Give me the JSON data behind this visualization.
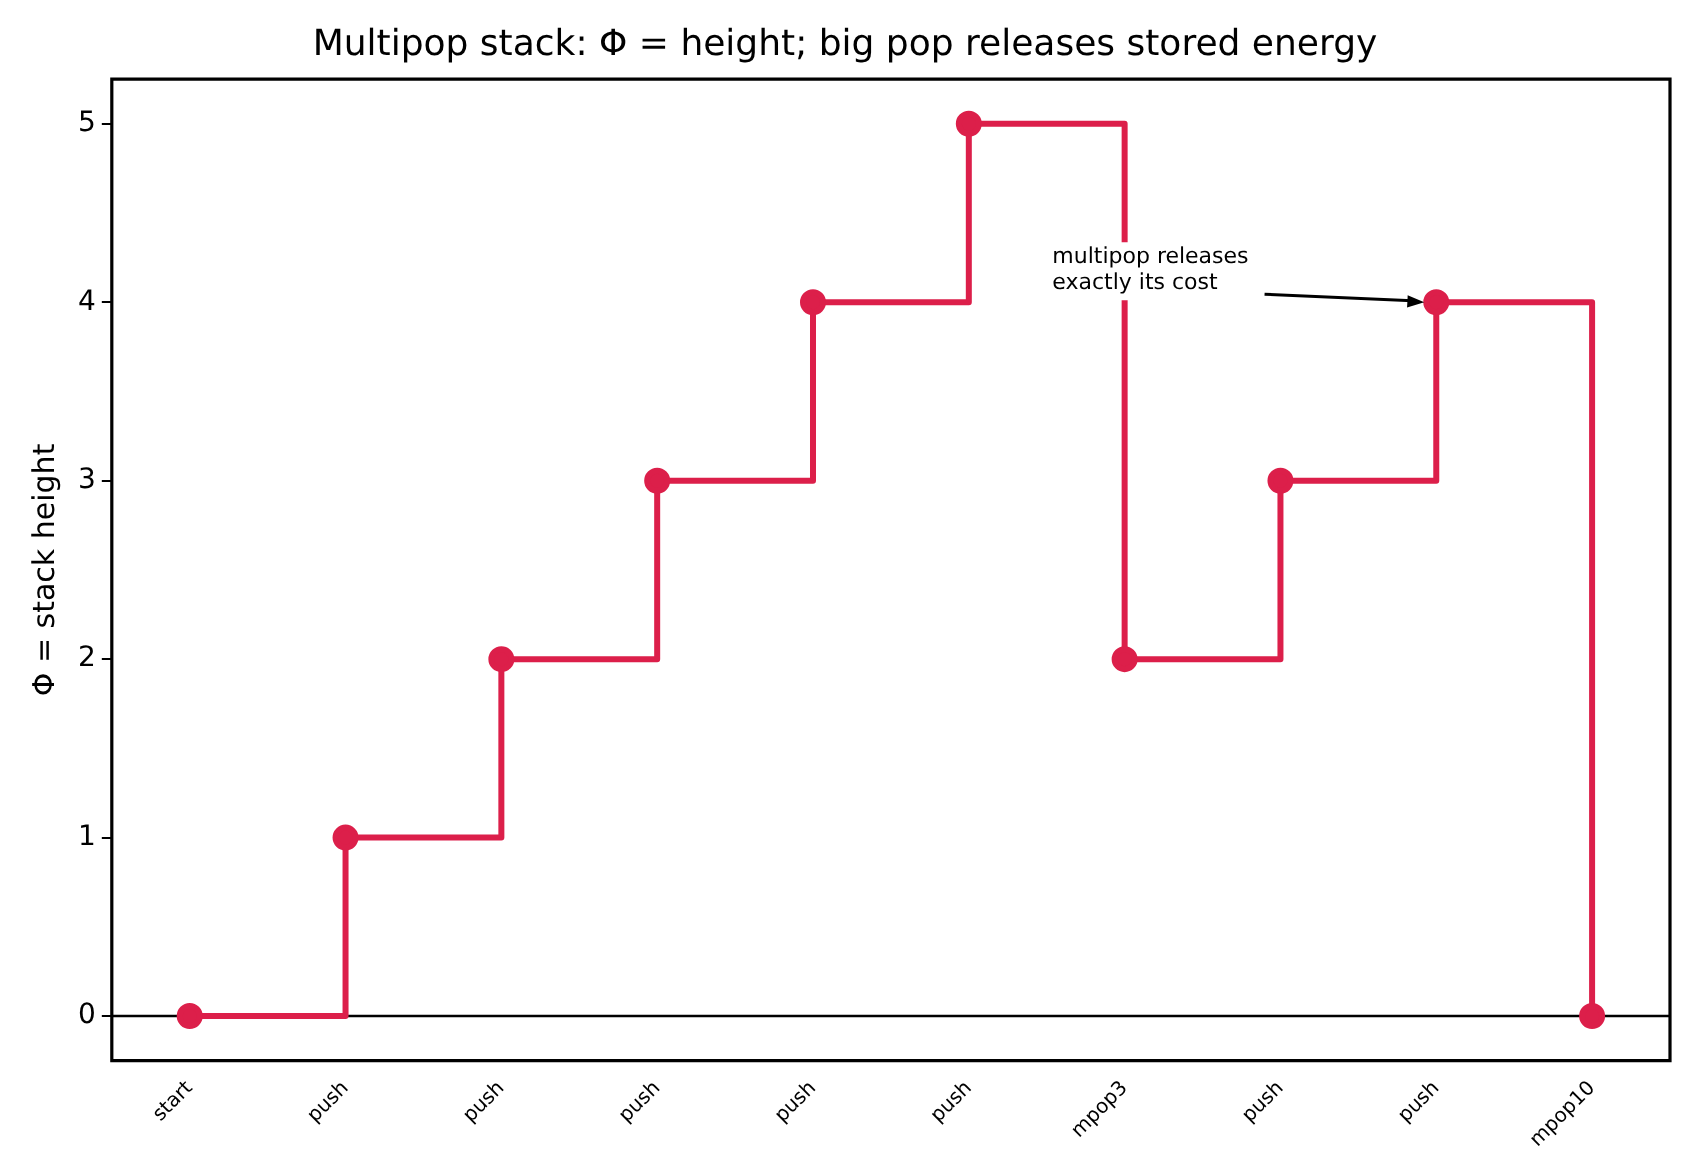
{
  "chart_data": {
    "type": "step",
    "title": "Multipop stack: Φ = height; big pop releases stored energy",
    "ylabel": "Φ = stack height",
    "categories": [
      "start",
      "push",
      "push",
      "push",
      "push",
      "push",
      "mpop3",
      "push",
      "push",
      "mpop10"
    ],
    "series": [
      {
        "color": "#dc1f4a",
        "values": [
          0,
          1,
          2,
          3,
          4,
          5,
          2,
          3,
          4,
          0
        ]
      }
    ],
    "ylim": [
      -0.25,
      5.25
    ],
    "yticks": [
      0,
      1,
      2,
      3,
      4,
      5
    ],
    "grid": false,
    "legend": false,
    "marker": "circle",
    "line_style": "solid",
    "ref_lines": [
      {
        "axis": "y",
        "value": 0,
        "color": "#000000"
      }
    ],
    "annotations": [
      "multipop releases\nexactly its cost"
    ]
  }
}
